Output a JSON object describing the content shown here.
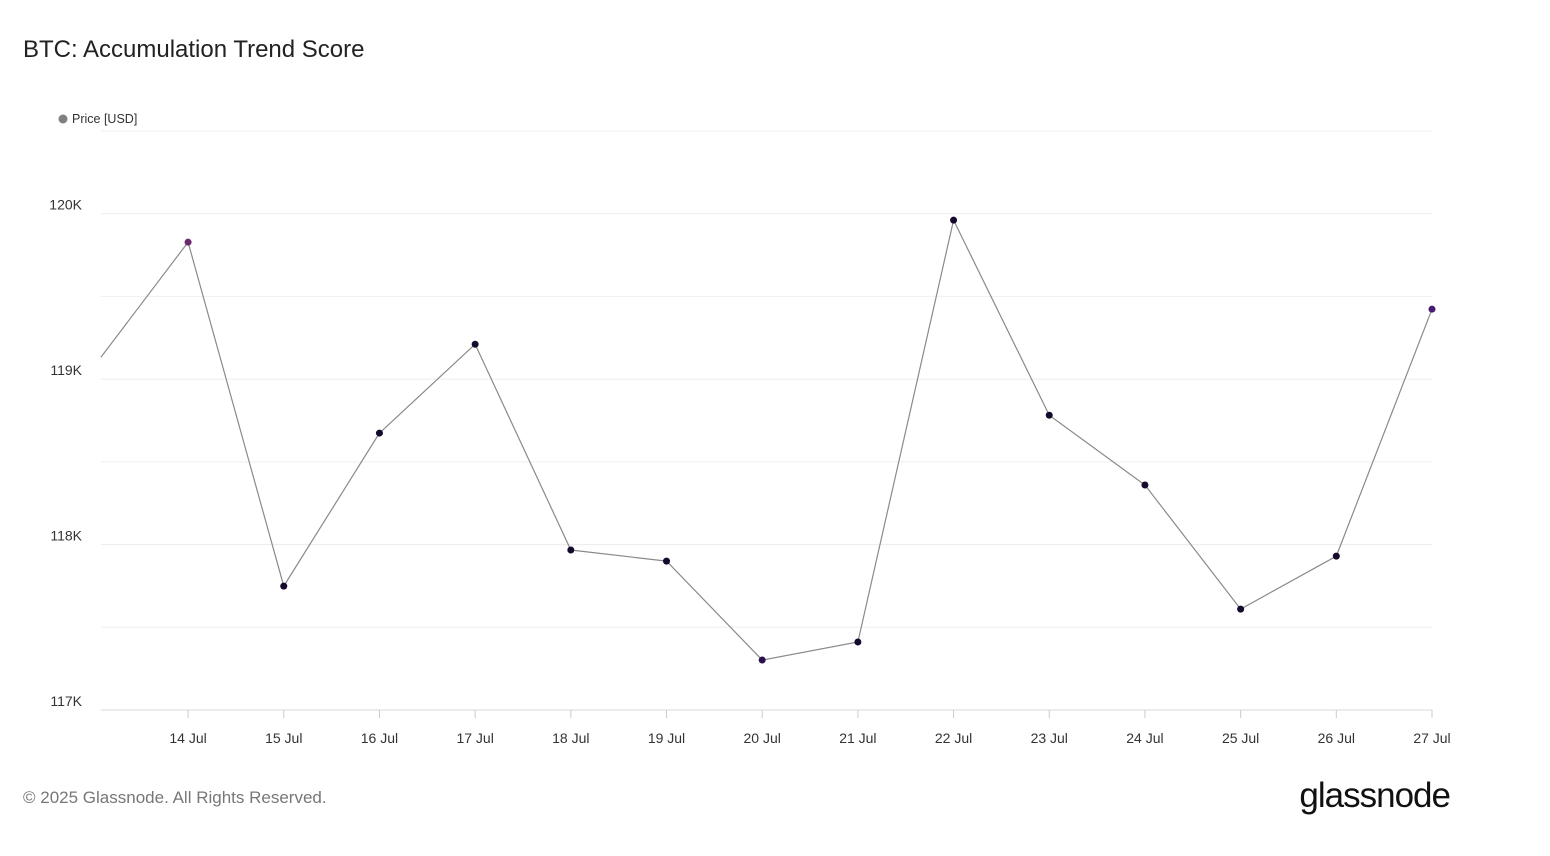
{
  "chart_data": {
    "type": "line",
    "title": "BTC: Accumulation Trend Score",
    "legend": "Price [USD]",
    "x": [
      13.09,
      14,
      15,
      16,
      17,
      18,
      19,
      20,
      21,
      22,
      23,
      24,
      25,
      26,
      27
    ],
    "series": [
      {
        "name": "Price [USD]",
        "color": "#8a8a8a",
        "values": [
          119133,
          119828,
          117749,
          118674,
          119211,
          117967,
          117900,
          117302,
          117411,
          119961,
          118782,
          118360,
          117610,
          117930,
          119423
        ],
        "point_colors": [
          null,
          "#6b2a6e",
          "#150a2e",
          "#150a2e",
          "#150a2e",
          "#150a2e",
          "#150a2e",
          "#2a0f4a",
          "#150a2e",
          "#150a2e",
          "#150a2e",
          "#150a2e",
          "#150a2e",
          "#150a2e",
          "#4a1a6e"
        ]
      }
    ],
    "xlim": [
      13.09,
      27
    ],
    "xticks": [
      {
        "value": 14,
        "label": "14 Jul"
      },
      {
        "value": 15,
        "label": "15 Jul"
      },
      {
        "value": 16,
        "label": "16 Jul"
      },
      {
        "value": 17,
        "label": "17 Jul"
      },
      {
        "value": 18,
        "label": "18 Jul"
      },
      {
        "value": 19,
        "label": "19 Jul"
      },
      {
        "value": 20,
        "label": "20 Jul"
      },
      {
        "value": 21,
        "label": "21 Jul"
      },
      {
        "value": 22,
        "label": "22 Jul"
      },
      {
        "value": 23,
        "label": "23 Jul"
      },
      {
        "value": 24,
        "label": "24 Jul"
      },
      {
        "value": 25,
        "label": "25 Jul"
      },
      {
        "value": 26,
        "label": "26 Jul"
      },
      {
        "value": 27,
        "label": "27 Jul"
      }
    ],
    "ylim": [
      117000,
      120500
    ],
    "yticks": [
      {
        "value": 117000,
        "label": "117K"
      },
      {
        "value": 118000,
        "label": "118K"
      },
      {
        "value": 119000,
        "label": "119K"
      },
      {
        "value": 120000,
        "label": "120K"
      }
    ],
    "minor_grid": [
      117500,
      118500,
      119500,
      120500
    ],
    "grid": true
  },
  "footer": {
    "copyright": "© 2025 Glassnode. All Rights Reserved.",
    "logo": "glassnode"
  }
}
